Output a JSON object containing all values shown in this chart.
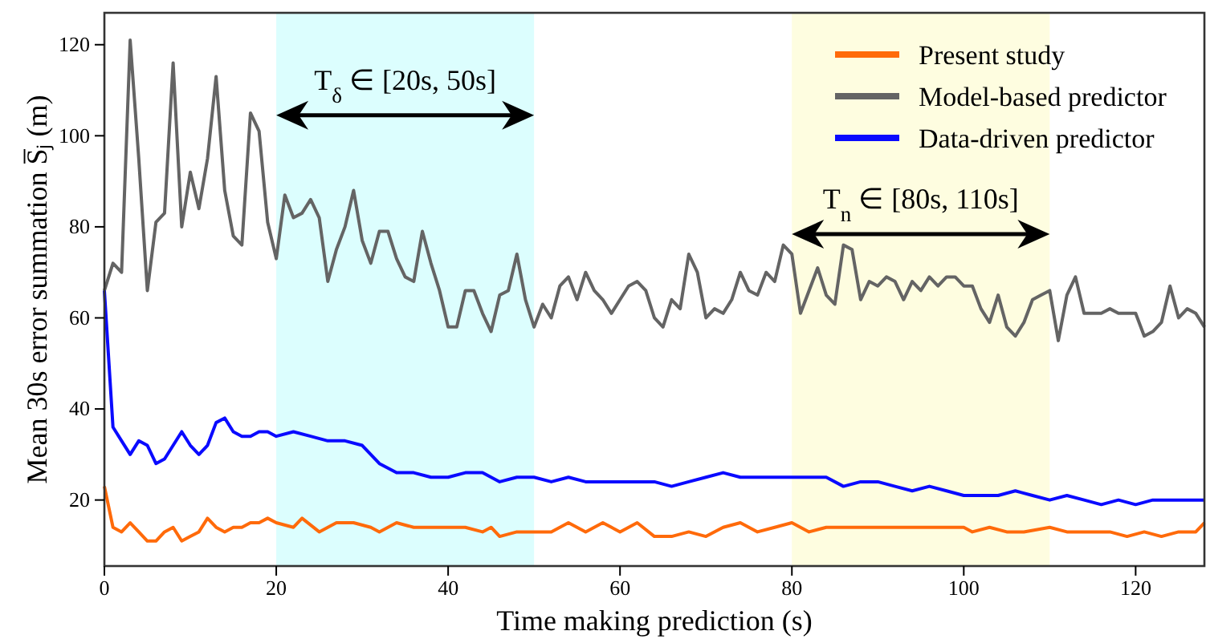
{
  "chart_data": {
    "type": "line",
    "xlabel": "Time making prediction (s)",
    "ylabel": "Mean 30s error summation S̅ⱼ (m)",
    "xlim": [
      0,
      128
    ],
    "ylim": [
      5.5,
      127
    ],
    "xticks": [
      0,
      20,
      40,
      60,
      80,
      100,
      120
    ],
    "yticks": [
      20,
      40,
      60,
      80,
      100,
      120
    ],
    "grid": false,
    "legend": "top right",
    "line_style": "solid",
    "marker": "none",
    "bands": [
      {
        "axis": "x",
        "from": 20,
        "to": 50,
        "label": "T$_{δ}$ ∈ [20s, 50s]",
        "color": "#dcfefe"
      },
      {
        "axis": "x",
        "from": 80,
        "to": 110,
        "label": "T$_{n}$ ∈ [80s, 110s]",
        "color": "#fefde0"
      }
    ],
    "series": [
      {
        "name": "Present study",
        "color": "#ff6a0a",
        "x": [
          0,
          1,
          2,
          3,
          4,
          5,
          6,
          7,
          8,
          9,
          10,
          11,
          12,
          13,
          14,
          15,
          16,
          17,
          18,
          19,
          20,
          22,
          23,
          25,
          27,
          29,
          31,
          32,
          34,
          36,
          38,
          40,
          42,
          44,
          45,
          46,
          48,
          50,
          52,
          54,
          56,
          58,
          60,
          62,
          64,
          66,
          68,
          70,
          72,
          74,
          76,
          78,
          80,
          82,
          84,
          86,
          88,
          90,
          92,
          94,
          96,
          98,
          100,
          101,
          103,
          105,
          107,
          110,
          112,
          115,
          117,
          119,
          121,
          123,
          125,
          127,
          128
        ],
        "values": [
          23,
          14,
          13,
          15,
          13,
          11,
          11,
          13,
          14,
          11,
          12,
          13,
          16,
          14,
          13,
          14,
          14,
          15,
          15,
          16,
          15,
          14,
          16,
          13,
          15,
          15,
          14,
          13,
          15,
          14,
          14,
          14,
          14,
          13,
          14,
          12,
          13,
          13,
          13,
          15,
          13,
          15,
          13,
          15,
          12,
          12,
          13,
          12,
          14,
          15,
          13,
          14,
          15,
          13,
          14,
          14,
          14,
          14,
          14,
          14,
          14,
          14,
          14,
          13,
          14,
          13,
          13,
          14,
          13,
          13,
          13,
          12,
          13,
          12,
          13,
          13,
          15
        ]
      },
      {
        "name": "Model-based predictor",
        "color": "#646464",
        "x": [
          0,
          1,
          2,
          3,
          4,
          5,
          6,
          7,
          8,
          9,
          10,
          11,
          12,
          13,
          14,
          15,
          16,
          17,
          18,
          19,
          20,
          21,
          22,
          23,
          24,
          25,
          26,
          27,
          28,
          29,
          30,
          31,
          32,
          33,
          34,
          35,
          36,
          37,
          38,
          39,
          40,
          41,
          42,
          43,
          44,
          45,
          46,
          47,
          48,
          49,
          50,
          51,
          52,
          53,
          54,
          55,
          56,
          57,
          58,
          59,
          60,
          61,
          62,
          63,
          64,
          65,
          66,
          67,
          68,
          69,
          70,
          71,
          72,
          73,
          74,
          75,
          76,
          77,
          78,
          79,
          80,
          81,
          82,
          83,
          84,
          85,
          86,
          87,
          88,
          89,
          90,
          91,
          92,
          93,
          94,
          95,
          96,
          97,
          98,
          99,
          100,
          101,
          102,
          103,
          104,
          105,
          106,
          107,
          108,
          109,
          110,
          111,
          112,
          113,
          114,
          115,
          116,
          117,
          118,
          119,
          120,
          121,
          122,
          123,
          124,
          125,
          126,
          127,
          128
        ],
        "values": [
          66,
          72,
          70,
          121,
          95,
          66,
          81,
          83,
          116,
          80,
          92,
          84,
          95,
          113,
          88,
          78,
          76,
          105,
          101,
          81,
          73,
          87,
          82,
          83,
          86,
          82,
          68,
          75,
          80,
          88,
          77,
          72,
          79,
          79,
          73,
          69,
          68,
          79,
          72,
          66,
          58,
          58,
          66,
          66,
          61,
          57,
          65,
          66,
          74,
          64,
          58,
          63,
          60,
          67,
          69,
          64,
          70,
          66,
          64,
          61,
          64,
          67,
          68,
          66,
          60,
          58,
          64,
          62,
          74,
          70,
          60,
          62,
          61,
          64,
          70,
          66,
          65,
          70,
          68,
          76,
          74,
          61,
          66,
          71,
          65,
          63,
          76,
          75,
          64,
          68,
          67,
          69,
          68,
          64,
          68,
          66,
          69,
          67,
          69,
          69,
          67,
          67,
          62,
          59,
          65,
          58,
          56,
          59,
          64,
          65,
          66,
          55,
          65,
          69,
          61,
          61,
          61,
          62,
          61,
          61,
          61,
          56,
          57,
          59,
          67,
          60,
          62,
          61,
          58
        ]
      },
      {
        "name": "Data-driven predictor",
        "color": "#0a0aff",
        "x": [
          0,
          1,
          2,
          3,
          4,
          5,
          6,
          7,
          8,
          9,
          10,
          11,
          12,
          13,
          14,
          15,
          16,
          17,
          18,
          19,
          20,
          22,
          24,
          26,
          28,
          30,
          32,
          34,
          36,
          38,
          40,
          42,
          44,
          46,
          48,
          50,
          52,
          54,
          56,
          58,
          60,
          62,
          64,
          66,
          68,
          70,
          72,
          74,
          76,
          78,
          80,
          82,
          84,
          86,
          88,
          90,
          92,
          94,
          96,
          98,
          100,
          102,
          104,
          106,
          108,
          110,
          112,
          114,
          116,
          118,
          120,
          122,
          124,
          126,
          128
        ],
        "values": [
          66,
          36,
          33,
          30,
          33,
          32,
          28,
          29,
          32,
          35,
          32,
          30,
          32,
          37,
          38,
          35,
          34,
          34,
          35,
          35,
          34,
          35,
          34,
          33,
          33,
          32,
          28,
          26,
          26,
          25,
          25,
          26,
          26,
          24,
          25,
          25,
          24,
          25,
          24,
          24,
          24,
          24,
          24,
          23,
          24,
          25,
          26,
          25,
          25,
          25,
          25,
          25,
          25,
          23,
          24,
          24,
          23,
          22,
          23,
          22,
          21,
          21,
          21,
          22,
          21,
          20,
          21,
          20,
          19,
          20,
          19,
          20,
          20,
          20,
          20
        ]
      }
    ]
  }
}
